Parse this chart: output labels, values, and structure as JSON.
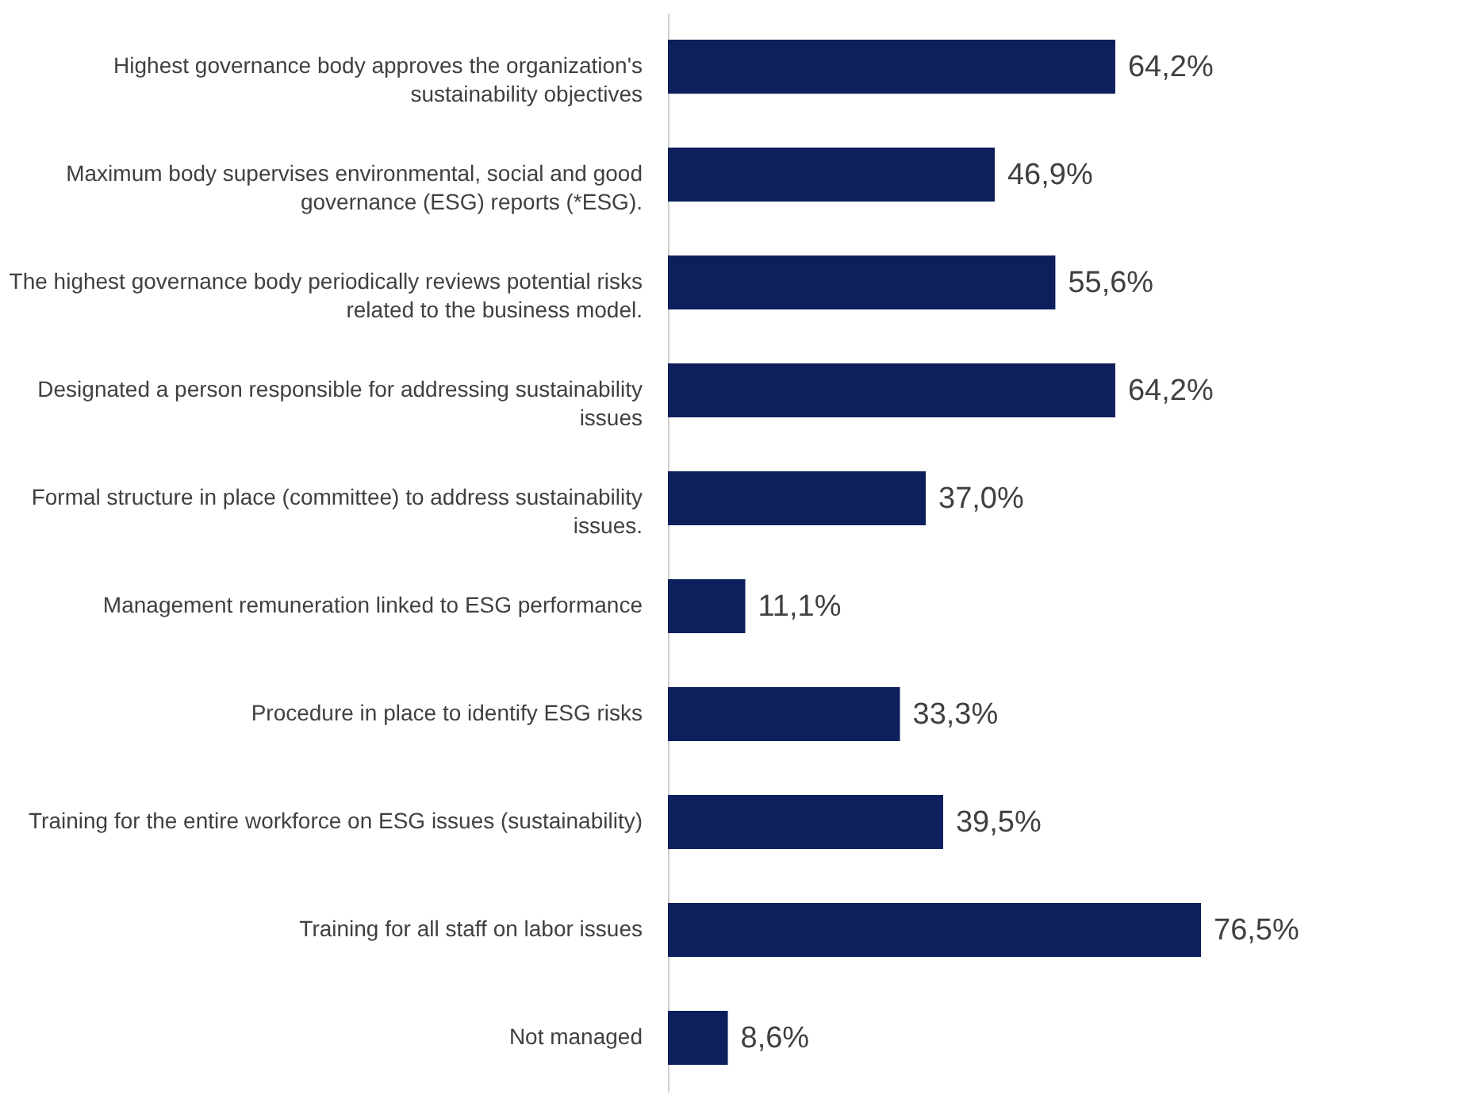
{
  "chart_data": {
    "type": "bar",
    "orientation": "horizontal",
    "categories": [
      "Highest governance body approves the organization's sustainability objectives",
      "Maximum body supervises environmental, social and good governance (ESG) reports (*ESG).",
      "The highest governance body periodically reviews potential risks related to the business model.",
      "Designated a person responsible for addressing sustainability issues",
      "Formal structure in place (committee) to address sustainability issues.",
      "Management remuneration linked to ESG performance",
      "Procedure in place to identify ESG risks",
      "Training for the entire workforce on ESG issues (sustainability)",
      "Training for all staff on labor issues",
      "Not managed"
    ],
    "values": [
      64.2,
      46.9,
      55.6,
      64.2,
      37.0,
      11.1,
      33.3,
      39.5,
      76.5,
      8.6
    ],
    "value_labels": [
      "64,2%",
      "46,9%",
      "55,6%",
      "64,2%",
      "37,0%",
      "11,1%",
      "33,3%",
      "39,5%",
      "76,5%",
      "8,6%"
    ],
    "color": "#0d1f5c"
  }
}
